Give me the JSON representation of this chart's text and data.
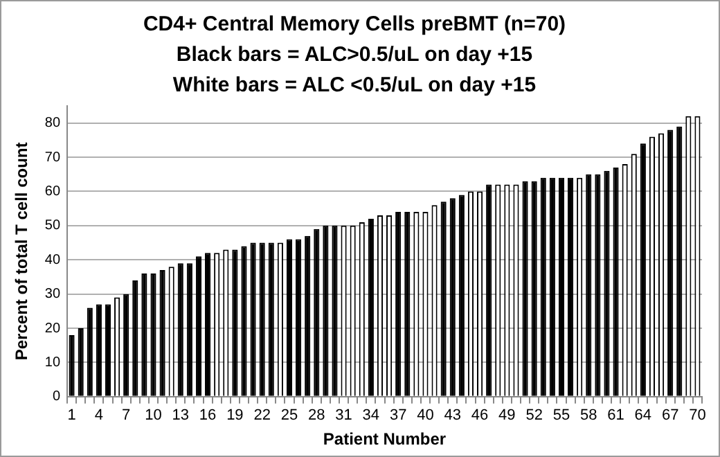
{
  "chart_data": {
    "type": "bar",
    "title": "CD4+ Central Memory Cells preBMT (n=70)",
    "subtitle": "Black bars = ALC>0.5/uL on day +15\nWhite bars = ALC <0.5/uL on day +15",
    "xlabel": "Patient Number",
    "ylabel": "Percent of total T cell count",
    "categories": [
      "1",
      null,
      null,
      "4",
      null,
      null,
      "7",
      null,
      null,
      "10",
      null,
      null,
      "13",
      null,
      null,
      "16",
      null,
      null,
      "19",
      null,
      null,
      "22",
      null,
      null,
      "25",
      null,
      null,
      "28",
      null,
      null,
      "31",
      null,
      null,
      "34",
      null,
      null,
      "37",
      null,
      null,
      "40",
      null,
      null,
      "43",
      null,
      null,
      "46",
      null,
      null,
      "49",
      null,
      null,
      "52",
      null,
      null,
      "55",
      null,
      null,
      "58",
      null,
      null,
      "61",
      null,
      null,
      "64",
      null,
      null,
      "67",
      null,
      null,
      "70"
    ],
    "values": [
      18,
      20,
      26,
      27,
      27,
      29,
      30,
      34,
      36,
      36,
      37,
      38,
      39,
      39,
      41,
      42,
      42,
      43,
      43,
      44,
      45,
      45,
      45,
      45,
      46,
      46,
      47,
      49,
      50,
      50,
      50,
      50,
      51,
      52,
      53,
      53,
      54,
      54,
      54,
      54,
      56,
      57,
      58,
      59,
      60,
      60,
      62,
      62,
      62,
      62,
      63,
      63,
      64,
      64,
      64,
      64,
      64,
      65,
      65,
      66,
      67,
      68,
      71,
      74,
      76,
      77,
      78,
      79,
      82,
      82
    ],
    "colors": [
      "#000000",
      "#000000",
      "#000000",
      "#000000",
      "#000000",
      "#ffffff",
      "#000000",
      "#000000",
      "#000000",
      "#000000",
      "#000000",
      "#ffffff",
      "#000000",
      "#000000",
      "#000000",
      "#000000",
      "#ffffff",
      "#ffffff",
      "#000000",
      "#000000",
      "#000000",
      "#000000",
      "#000000",
      "#ffffff",
      "#000000",
      "#000000",
      "#000000",
      "#000000",
      "#000000",
      "#000000",
      "#ffffff",
      "#ffffff",
      "#ffffff",
      "#000000",
      "#ffffff",
      "#ffffff",
      "#000000",
      "#000000",
      "#ffffff",
      "#ffffff",
      "#ffffff",
      "#000000",
      "#000000",
      "#000000",
      "#ffffff",
      "#ffffff",
      "#000000",
      "#ffffff",
      "#ffffff",
      "#ffffff",
      "#000000",
      "#000000",
      "#000000",
      "#000000",
      "#000000",
      "#000000",
      "#ffffff",
      "#000000",
      "#000000",
      "#000000",
      "#000000",
      "#ffffff",
      "#ffffff",
      "#000000",
      "#ffffff",
      "#ffffff",
      "#000000",
      "#000000",
      "#ffffff",
      "#ffffff"
    ],
    "ylim": [
      0,
      85
    ],
    "yticks": [
      0,
      10,
      20,
      30,
      40,
      50,
      60,
      70,
      80
    ],
    "grid": "y"
  }
}
